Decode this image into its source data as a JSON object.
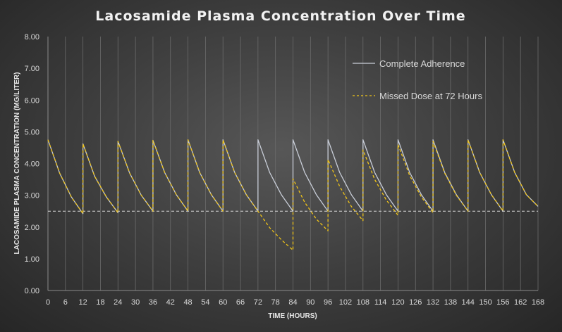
{
  "chart_data": {
    "type": "line",
    "title": "Lacosamide Plasma Concentration Over Time",
    "xlabel": "TIME (HOURS)",
    "ylabel": "LACOSAMIDE PLASMA CONCENTRATION (MG/LITER)",
    "xlim": [
      0,
      168
    ],
    "ylim": [
      0,
      8
    ],
    "x_ticks": [
      0,
      6,
      12,
      18,
      24,
      30,
      36,
      42,
      48,
      54,
      60,
      66,
      72,
      78,
      84,
      90,
      96,
      102,
      108,
      114,
      120,
      126,
      132,
      138,
      144,
      150,
      156,
      162,
      168
    ],
    "y_ticks": [
      "0.00",
      "1.00",
      "2.00",
      "3.00",
      "4.00",
      "5.00",
      "6.00",
      "7.00",
      "8.00"
    ],
    "grid": "vertical",
    "legend_position": "top-right",
    "reference_line": {
      "y": 2.5,
      "style": "dashed",
      "color": "#d9d9d9"
    },
    "series": [
      {
        "name": "Complete Adherence",
        "color": "#c9ced8",
        "style": "solid",
        "points": [
          [
            0,
            4.75
          ],
          [
            4,
            3.7
          ],
          [
            8,
            2.95
          ],
          [
            12,
            2.42
          ],
          [
            12,
            4.62
          ],
          [
            16,
            3.6
          ],
          [
            20,
            2.95
          ],
          [
            24,
            2.45
          ],
          [
            24,
            4.7
          ],
          [
            28,
            3.7
          ],
          [
            32,
            3.0
          ],
          [
            36,
            2.5
          ],
          [
            36,
            4.73
          ],
          [
            40,
            3.72
          ],
          [
            44,
            3.02
          ],
          [
            48,
            2.5
          ],
          [
            48,
            4.75
          ],
          [
            52,
            3.72
          ],
          [
            56,
            3.02
          ],
          [
            60,
            2.5
          ],
          [
            60,
            4.75
          ],
          [
            64,
            3.72
          ],
          [
            68,
            3.02
          ],
          [
            72,
            2.5
          ],
          [
            72,
            4.75
          ],
          [
            76,
            3.72
          ],
          [
            80,
            3.02
          ],
          [
            84,
            2.5
          ],
          [
            84,
            4.75
          ],
          [
            88,
            3.72
          ],
          [
            92,
            3.02
          ],
          [
            96,
            2.5
          ],
          [
            96,
            4.75
          ],
          [
            100,
            3.72
          ],
          [
            104,
            3.02
          ],
          [
            108,
            2.5
          ],
          [
            108,
            4.75
          ],
          [
            112,
            3.72
          ],
          [
            116,
            3.02
          ],
          [
            120,
            2.5
          ],
          [
            120,
            4.75
          ],
          [
            124,
            3.72
          ],
          [
            128,
            3.02
          ],
          [
            132,
            2.5
          ],
          [
            132,
            4.75
          ],
          [
            136,
            3.72
          ],
          [
            140,
            3.02
          ],
          [
            144,
            2.5
          ],
          [
            144,
            4.75
          ],
          [
            148,
            3.72
          ],
          [
            152,
            3.02
          ],
          [
            156,
            2.5
          ],
          [
            156,
            4.75
          ],
          [
            160,
            3.72
          ],
          [
            164,
            3.02
          ],
          [
            168,
            2.65
          ]
        ]
      },
      {
        "name": "Missed Dose at 72 Hours",
        "color": "#f0c419",
        "style": "dashed",
        "points": [
          [
            0,
            4.75
          ],
          [
            4,
            3.7
          ],
          [
            8,
            2.95
          ],
          [
            12,
            2.42
          ],
          [
            12,
            4.62
          ],
          [
            16,
            3.6
          ],
          [
            20,
            2.95
          ],
          [
            24,
            2.45
          ],
          [
            24,
            4.7
          ],
          [
            28,
            3.7
          ],
          [
            32,
            3.0
          ],
          [
            36,
            2.5
          ],
          [
            36,
            4.73
          ],
          [
            40,
            3.72
          ],
          [
            44,
            3.02
          ],
          [
            48,
            2.5
          ],
          [
            48,
            4.75
          ],
          [
            52,
            3.72
          ],
          [
            56,
            3.02
          ],
          [
            60,
            2.5
          ],
          [
            60,
            4.75
          ],
          [
            64,
            3.72
          ],
          [
            68,
            3.02
          ],
          [
            72,
            2.5
          ],
          [
            76,
            1.98
          ],
          [
            80,
            1.6
          ],
          [
            84,
            1.27
          ],
          [
            84,
            3.52
          ],
          [
            88,
            2.78
          ],
          [
            92,
            2.25
          ],
          [
            96,
            1.88
          ],
          [
            96,
            4.13
          ],
          [
            100,
            3.28
          ],
          [
            104,
            2.65
          ],
          [
            108,
            2.2
          ],
          [
            108,
            4.43
          ],
          [
            112,
            3.5
          ],
          [
            116,
            2.85
          ],
          [
            120,
            2.37
          ],
          [
            120,
            4.6
          ],
          [
            124,
            3.62
          ],
          [
            128,
            2.95
          ],
          [
            132,
            2.45
          ],
          [
            132,
            4.7
          ],
          [
            136,
            3.7
          ],
          [
            140,
            3.0
          ],
          [
            144,
            2.5
          ],
          [
            144,
            4.75
          ],
          [
            148,
            3.72
          ],
          [
            152,
            3.02
          ],
          [
            156,
            2.5
          ],
          [
            156,
            4.75
          ],
          [
            160,
            3.72
          ],
          [
            164,
            3.02
          ],
          [
            168,
            2.65
          ]
        ]
      }
    ]
  }
}
